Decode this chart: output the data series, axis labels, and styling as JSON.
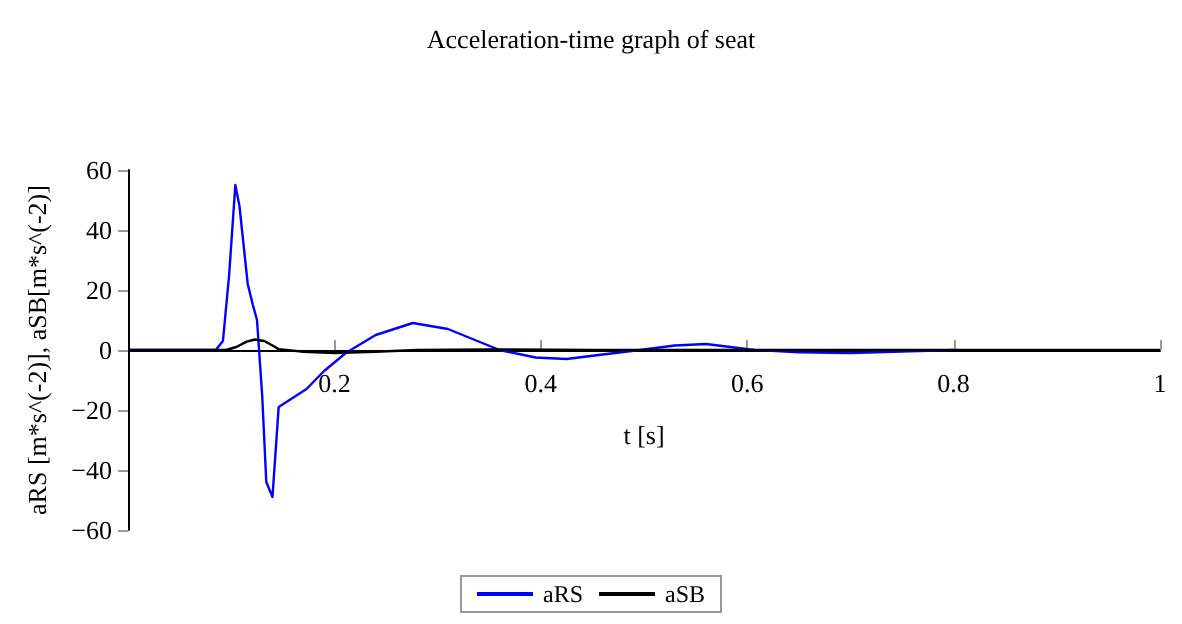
{
  "chart_data": {
    "type": "line",
    "title": "Acceleration-time graph of seat",
    "xlabel": "t [s]",
    "ylabel": "aRS [m*s^(-2)], aSB[m*s^(-2)]",
    "xlim": [
      0,
      1
    ],
    "xticks": [
      0.2,
      0.4,
      0.6,
      0.8,
      1
    ],
    "ylim": [
      -60,
      60
    ],
    "yticks": [
      -60,
      -40,
      -20,
      0,
      20,
      40,
      60
    ],
    "grid": false,
    "legend": "bottom",
    "marker": "none",
    "line_style": "solid",
    "series": [
      {
        "name": "aRS",
        "color": "#0000ff",
        "x": [
          0,
          0.085,
          0.092,
          0.098,
          0.104,
          0.108,
          0.112,
          0.116,
          0.121,
          0.125,
          0.13,
          0.134,
          0.14,
          0.146,
          0.155,
          0.173,
          0.19,
          0.211,
          0.24,
          0.276,
          0.31,
          0.36,
          0.395,
          0.425,
          0.46,
          0.496,
          0.53,
          0.56,
          0.607,
          0.65,
          0.7,
          0.75,
          0.8
        ],
        "values": [
          0,
          0,
          3,
          25,
          55,
          48,
          35,
          22,
          15,
          10,
          -15,
          -44,
          -49,
          -19,
          -17,
          -13,
          -7,
          -1,
          5,
          9,
          7,
          0,
          -2.5,
          -3,
          -1.5,
          0,
          1.5,
          2,
          0,
          -0.8,
          -1,
          -0.5,
          0
        ]
      },
      {
        "name": "aSB",
        "color": "#000000",
        "x": [
          0,
          0.095,
          0.105,
          0.115,
          0.123,
          0.132,
          0.14,
          0.146,
          0.17,
          0.2,
          0.24,
          0.28,
          0.35,
          0.45,
          0.6,
          0.8,
          1
        ],
        "values": [
          0,
          0,
          1,
          2.8,
          3.5,
          3,
          1.5,
          0.3,
          -0.6,
          -1,
          -0.6,
          0,
          0.2,
          0,
          0,
          0,
          0
        ]
      }
    ]
  }
}
